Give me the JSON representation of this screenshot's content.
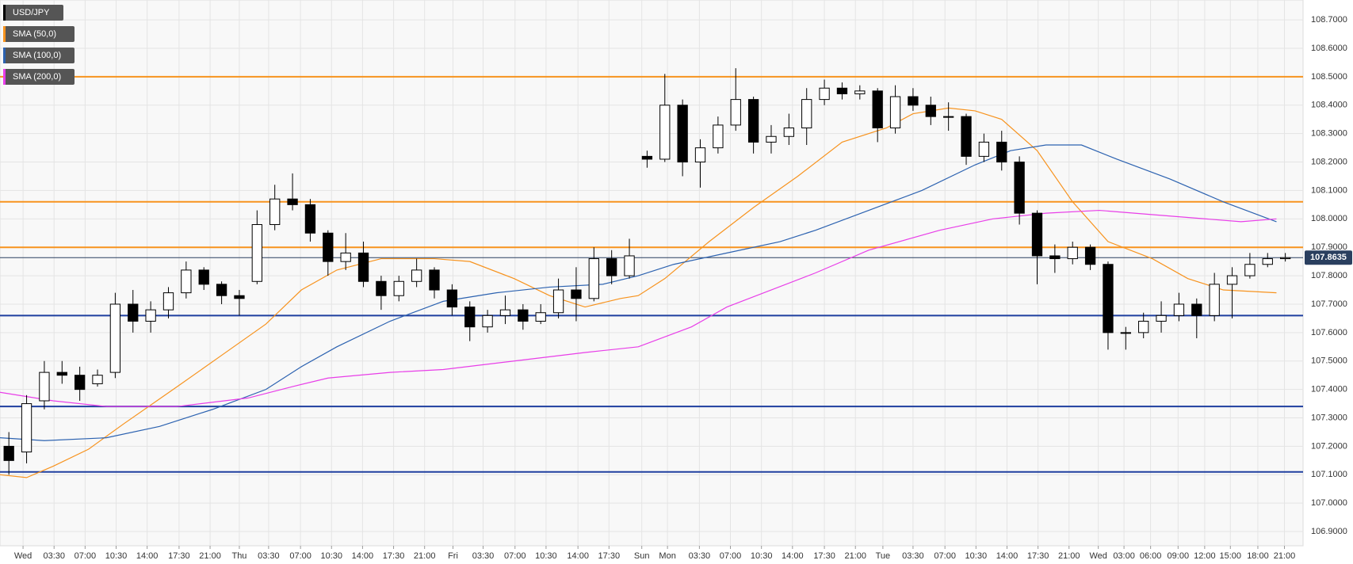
{
  "chart_data": {
    "type": "candlestick",
    "name": "USD/JPY",
    "up_color": "#ffffff",
    "down_color": "#000000",
    "xlim": [
      0,
      147
    ],
    "ylim": [
      106.85,
      108.77
    ],
    "grid": true,
    "xticks": [
      {
        "value": 2.6,
        "label": "Wed"
      },
      {
        "value": 6.1,
        "label": "03:30"
      },
      {
        "value": 9.6,
        "label": "07:00"
      },
      {
        "value": 13.1,
        "label": "10:30"
      },
      {
        "value": 16.6,
        "label": "14:00"
      },
      {
        "value": 20.2,
        "label": "17:30"
      },
      {
        "value": 23.7,
        "label": "21:00"
      },
      {
        "value": 27.0,
        "label": "Thu"
      },
      {
        "value": 30.3,
        "label": "03:30"
      },
      {
        "value": 33.9,
        "label": "07:00"
      },
      {
        "value": 37.4,
        "label": "10:30"
      },
      {
        "value": 40.9,
        "label": "14:00"
      },
      {
        "value": 44.4,
        "label": "17:30"
      },
      {
        "value": 47.9,
        "label": "21:00"
      },
      {
        "value": 51.1,
        "label": "Fri"
      },
      {
        "value": 54.5,
        "label": "03:30"
      },
      {
        "value": 58.1,
        "label": "07:00"
      },
      {
        "value": 61.6,
        "label": "10:30"
      },
      {
        "value": 65.2,
        "label": "14:00"
      },
      {
        "value": 68.7,
        "label": "17:30"
      },
      {
        "value": 72.4,
        "label": "Sun"
      },
      {
        "value": 75.3,
        "label": "Mon"
      },
      {
        "value": 78.9,
        "label": "03:30"
      },
      {
        "value": 82.4,
        "label": "07:00"
      },
      {
        "value": 85.9,
        "label": "10:30"
      },
      {
        "value": 89.4,
        "label": "14:00"
      },
      {
        "value": 93.0,
        "label": "17:30"
      },
      {
        "value": 96.5,
        "label": "21:00"
      },
      {
        "value": 99.6,
        "label": "Tue"
      },
      {
        "value": 103.0,
        "label": "03:30"
      },
      {
        "value": 106.6,
        "label": "07:00"
      },
      {
        "value": 110.1,
        "label": "10:30"
      },
      {
        "value": 113.6,
        "label": "14:00"
      },
      {
        "value": 117.1,
        "label": "17:30"
      },
      {
        "value": 120.6,
        "label": "21:00"
      },
      {
        "value": 123.9,
        "label": "Wed"
      },
      {
        "value": 126.8,
        "label": "03:00"
      },
      {
        "value": 129.8,
        "label": "06:00"
      },
      {
        "value": 132.9,
        "label": "09:00"
      },
      {
        "value": 135.9,
        "label": "12:00"
      },
      {
        "value": 138.8,
        "label": "15:00"
      },
      {
        "value": 141.9,
        "label": "18:00"
      },
      {
        "value": 144.9,
        "label": "21:00"
      }
    ],
    "yticks": [
      {
        "value": 106.9,
        "label": "106.9000"
      },
      {
        "value": 107.0,
        "label": "107.0000"
      },
      {
        "value": 107.1,
        "label": "107.1000"
      },
      {
        "value": 107.2,
        "label": "107.2000"
      },
      {
        "value": 107.3,
        "label": "107.3000"
      },
      {
        "value": 107.4,
        "label": "107.4000"
      },
      {
        "value": 107.5,
        "label": "107.5000"
      },
      {
        "value": 107.6,
        "label": "107.6000"
      },
      {
        "value": 107.7,
        "label": "107.7000"
      },
      {
        "value": 107.8,
        "label": "107.8000"
      },
      {
        "value": 107.9,
        "label": "107.9000"
      },
      {
        "value": 108.0,
        "label": "108.0000"
      },
      {
        "value": 108.1,
        "label": "108.1000"
      },
      {
        "value": 108.2,
        "label": "108.2000"
      },
      {
        "value": 108.3,
        "label": "108.3000"
      },
      {
        "value": 108.4,
        "label": "108.4000"
      },
      {
        "value": 108.5,
        "label": "108.5000"
      },
      {
        "value": 108.6,
        "label": "108.6000"
      },
      {
        "value": 108.7,
        "label": "108.7000"
      }
    ],
    "x": [
      1,
      3,
      5,
      7,
      9,
      11,
      13,
      15,
      17,
      19,
      21,
      23,
      25,
      27,
      29,
      31,
      33,
      35,
      37,
      39,
      41,
      43,
      45,
      47,
      49,
      51,
      53,
      55,
      57,
      59,
      61,
      63,
      65,
      67,
      69,
      71,
      73,
      75,
      77,
      79,
      81,
      83,
      85,
      87,
      89,
      91,
      93,
      95,
      97,
      99,
      101,
      103,
      105,
      107,
      109,
      111,
      113,
      115,
      117,
      119,
      121,
      123,
      125,
      127,
      129,
      131,
      133,
      135,
      137,
      139,
      141,
      143,
      145
    ],
    "open": [
      107.2,
      107.18,
      107.36,
      107.46,
      107.45,
      107.42,
      107.46,
      107.7,
      107.64,
      107.68,
      107.74,
      107.82,
      107.77,
      107.73,
      107.78,
      107.98,
      108.07,
      108.05,
      107.95,
      107.85,
      107.88,
      107.78,
      107.73,
      107.78,
      107.82,
      107.75,
      107.69,
      107.62,
      107.66,
      107.68,
      107.64,
      107.67,
      107.75,
      107.72,
      107.86,
      107.8,
      108.22,
      108.21,
      108.4,
      108.2,
      108.25,
      108.33,
      108.42,
      108.27,
      108.29,
      108.32,
      108.42,
      108.46,
      108.44,
      108.45,
      108.32,
      108.43,
      108.4,
      108.36,
      108.36,
      108.22,
      108.27,
      108.2,
      108.02,
      107.87,
      107.86,
      107.9,
      107.84,
      107.6,
      107.6,
      107.64,
      107.66,
      107.7,
      107.66,
      107.77,
      107.8,
      107.84,
      107.86
    ],
    "high": [
      107.25,
      107.38,
      107.5,
      107.5,
      107.48,
      107.47,
      107.74,
      107.75,
      107.71,
      107.76,
      107.85,
      107.83,
      107.78,
      107.75,
      108.03,
      108.12,
      108.16,
      108.07,
      107.96,
      107.95,
      107.92,
      107.8,
      107.8,
      107.86,
      107.83,
      107.77,
      107.71,
      107.68,
      107.73,
      107.7,
      107.7,
      107.79,
      107.83,
      107.9,
      107.89,
      107.93,
      108.24,
      108.51,
      108.42,
      108.28,
      108.36,
      108.53,
      108.43,
      108.33,
      108.37,
      108.46,
      108.49,
      108.48,
      108.47,
      108.46,
      108.47,
      108.46,
      108.43,
      108.41,
      108.37,
      108.3,
      108.31,
      108.22,
      108.03,
      107.91,
      107.92,
      107.91,
      107.85,
      107.62,
      107.67,
      107.71,
      107.74,
      107.72,
      107.81,
      107.83,
      107.88,
      107.88,
      107.88
    ],
    "low": [
      107.1,
      107.14,
      107.33,
      107.42,
      107.36,
      107.41,
      107.44,
      107.6,
      107.6,
      107.65,
      107.72,
      107.75,
      107.7,
      107.66,
      107.77,
      107.96,
      108.03,
      107.92,
      107.8,
      107.82,
      107.76,
      107.68,
      107.71,
      107.76,
      107.72,
      107.66,
      107.57,
      107.6,
      107.63,
      107.61,
      107.63,
      107.65,
      107.64,
      107.71,
      107.77,
      107.79,
      108.18,
      108.2,
      108.15,
      108.11,
      108.23,
      108.31,
      108.23,
      108.23,
      108.26,
      108.26,
      108.4,
      108.42,
      108.42,
      108.27,
      108.3,
      108.38,
      108.33,
      108.31,
      108.19,
      108.2,
      108.17,
      107.98,
      107.77,
      107.81,
      107.84,
      107.82,
      107.54,
      107.54,
      107.58,
      107.6,
      107.64,
      107.58,
      107.64,
      107.65,
      107.79,
      107.83,
      107.85
    ],
    "close": [
      107.15,
      107.35,
      107.46,
      107.45,
      107.4,
      107.45,
      107.7,
      107.64,
      107.68,
      107.74,
      107.82,
      107.77,
      107.73,
      107.72,
      107.98,
      108.07,
      108.05,
      107.95,
      107.85,
      107.88,
      107.78,
      107.73,
      107.78,
      107.82,
      107.75,
      107.69,
      107.62,
      107.66,
      107.68,
      107.64,
      107.67,
      107.75,
      107.72,
      107.86,
      107.8,
      107.87,
      108.21,
      108.4,
      108.2,
      108.25,
      108.33,
      108.42,
      108.27,
      108.29,
      108.32,
      108.42,
      108.46,
      108.44,
      108.45,
      108.32,
      108.43,
      108.4,
      108.36,
      108.36,
      108.22,
      108.27,
      108.2,
      108.02,
      107.87,
      107.86,
      107.9,
      107.84,
      107.6,
      107.6,
      107.64,
      107.66,
      107.7,
      107.66,
      107.77,
      107.8,
      107.84,
      107.86,
      107.8635
    ],
    "series": [
      {
        "name": "SMA (50,0)",
        "color": "#f7931e",
        "x": [
          0,
          3,
          6,
          10,
          14,
          20,
          25,
          30,
          34,
          38,
          43,
          49,
          53,
          58,
          62,
          66,
          70,
          72,
          75,
          80,
          85,
          90,
          95,
          100,
          103,
          107,
          110,
          113,
          117,
          121,
          125,
          130,
          134,
          138,
          144
        ],
        "values": [
          107.1,
          107.09,
          107.13,
          107.19,
          107.28,
          107.41,
          107.52,
          107.63,
          107.75,
          107.82,
          107.86,
          107.86,
          107.85,
          107.79,
          107.73,
          107.69,
          107.72,
          107.73,
          107.79,
          107.92,
          108.04,
          108.15,
          108.27,
          108.32,
          108.37,
          108.39,
          108.38,
          108.35,
          108.24,
          108.06,
          107.92,
          107.86,
          107.79,
          107.75,
          107.74
        ]
      },
      {
        "name": "SMA (100,0)",
        "color": "#2c62b0",
        "x": [
          0,
          5,
          12,
          18,
          24,
          30,
          34,
          38,
          44,
          50,
          56,
          62,
          68,
          72,
          76,
          82,
          88,
          92,
          98,
          104,
          110,
          114,
          118,
          122,
          126,
          132,
          138,
          144
        ],
        "values": [
          107.23,
          107.22,
          107.23,
          107.27,
          107.33,
          107.4,
          107.48,
          107.55,
          107.64,
          107.71,
          107.74,
          107.76,
          107.77,
          107.8,
          107.84,
          107.88,
          107.92,
          107.96,
          108.03,
          108.1,
          108.19,
          108.24,
          108.26,
          108.26,
          108.21,
          108.14,
          108.06,
          107.99
        ]
      },
      {
        "name": "SMA (200,0)",
        "color": "#e83ee8",
        "x": [
          0,
          6,
          12,
          20,
          28,
          33,
          37,
          44,
          50,
          58,
          66,
          72,
          78,
          82,
          92,
          98,
          106,
          112,
          118,
          124,
          132,
          140,
          144
        ],
        "values": [
          107.39,
          107.36,
          107.34,
          107.34,
          107.37,
          107.41,
          107.44,
          107.46,
          107.47,
          107.5,
          107.53,
          107.55,
          107.62,
          107.69,
          107.81,
          107.89,
          107.96,
          108.0,
          108.02,
          108.03,
          108.01,
          107.99,
          108.0
        ]
      }
    ],
    "levels": [
      {
        "value": 108.5,
        "color": "#f7931e"
      },
      {
        "value": 108.06,
        "color": "#f7931e"
      },
      {
        "value": 107.9,
        "color": "#f7931e"
      },
      {
        "value": 107.66,
        "color": "#1f3f9f"
      },
      {
        "value": 107.34,
        "color": "#1f3f9f"
      },
      {
        "value": 107.11,
        "color": "#1f3f9f"
      }
    ],
    "last_price": {
      "value": 107.8635,
      "label": "107.8635",
      "color": "#2a3f5f"
    }
  }
}
